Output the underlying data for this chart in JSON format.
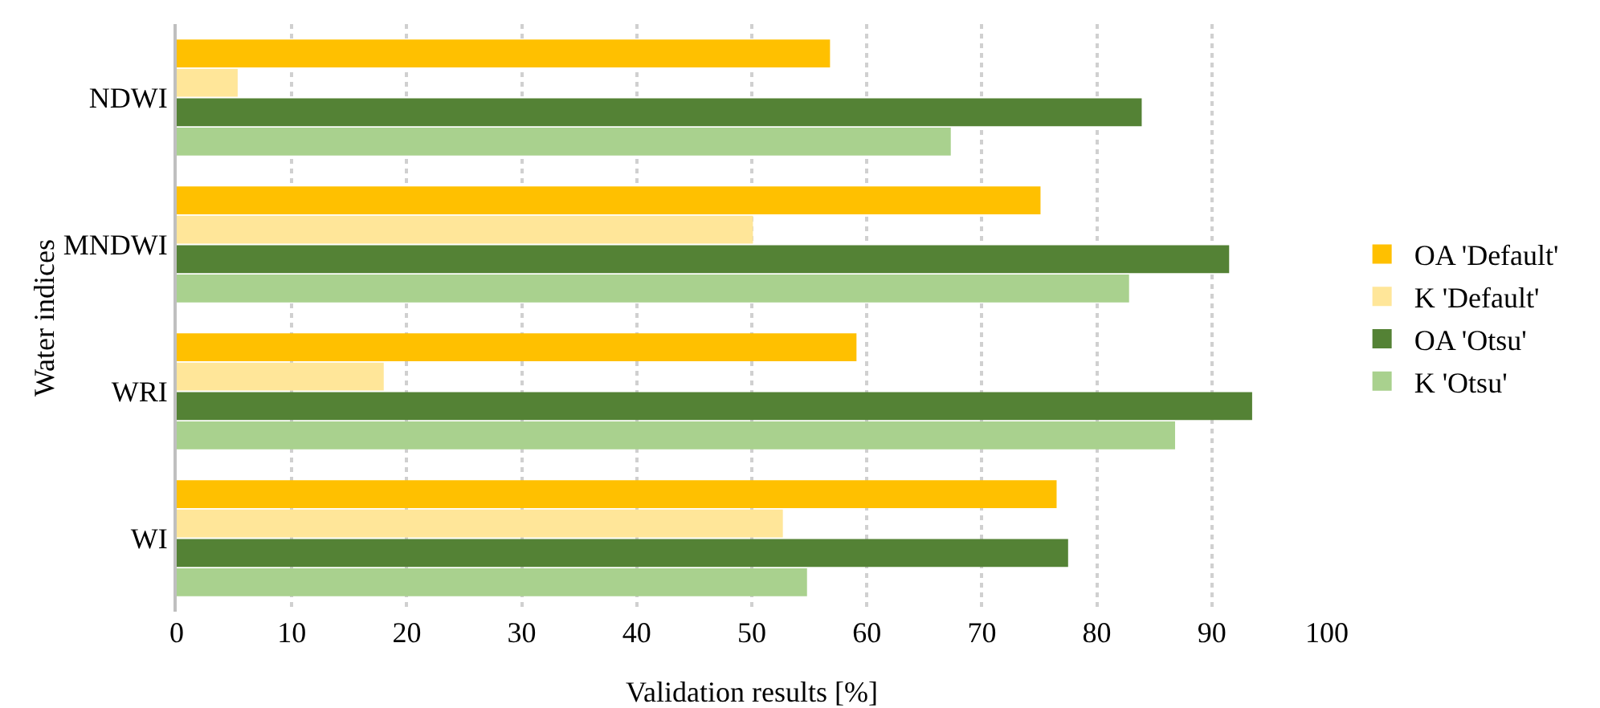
{
  "chart_data": {
    "type": "bar",
    "orientation": "horizontal",
    "xlabel": "Validation results [%]",
    "ylabel": "Water indices",
    "categories": [
      "NDWI",
      "MNDWI",
      "WRI",
      "WI"
    ],
    "series": [
      {
        "name": "OA 'Default'",
        "color": "#ffc000",
        "values": [
          56.8,
          75.1,
          59.1,
          76.5
        ]
      },
      {
        "name": "K 'Default'",
        "color": "#ffe699",
        "values": [
          5.3,
          50.1,
          18.0,
          52.7
        ]
      },
      {
        "name": "OA 'Otsu'",
        "color": "#548235",
        "values": [
          83.9,
          91.5,
          93.5,
          77.5
        ]
      },
      {
        "name": "K 'Otsu'",
        "color": "#a9d18e",
        "values": [
          67.3,
          82.8,
          86.8,
          54.8
        ]
      }
    ],
    "xlim": [
      0,
      100
    ],
    "xticks": [
      0,
      10,
      20,
      30,
      40,
      50,
      60,
      70,
      80,
      90,
      100
    ],
    "grid": "x",
    "legend": "right"
  }
}
